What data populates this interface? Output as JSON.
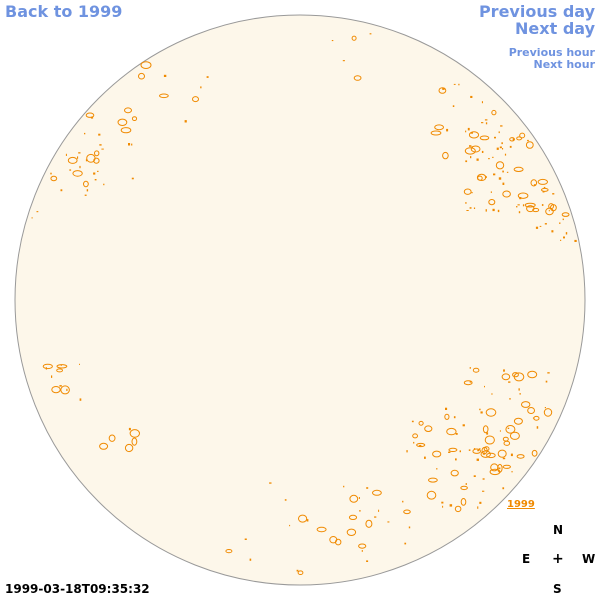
{
  "nav": {
    "back": "Back to 1999",
    "previous_day": "Previous day",
    "next_day": "Next day",
    "previous_hour": "Previous hour",
    "next_hour": "Next hour"
  },
  "disk": {
    "fill_color": "#fdf7ea",
    "border_color": "#999999",
    "feature_color": "#f08a00"
  },
  "year_link": "1999",
  "compass": {
    "north": "N",
    "east": "E",
    "center": "+",
    "west": "W",
    "south": "S"
  },
  "timestamp": "1999-03-18T09:35:32"
}
